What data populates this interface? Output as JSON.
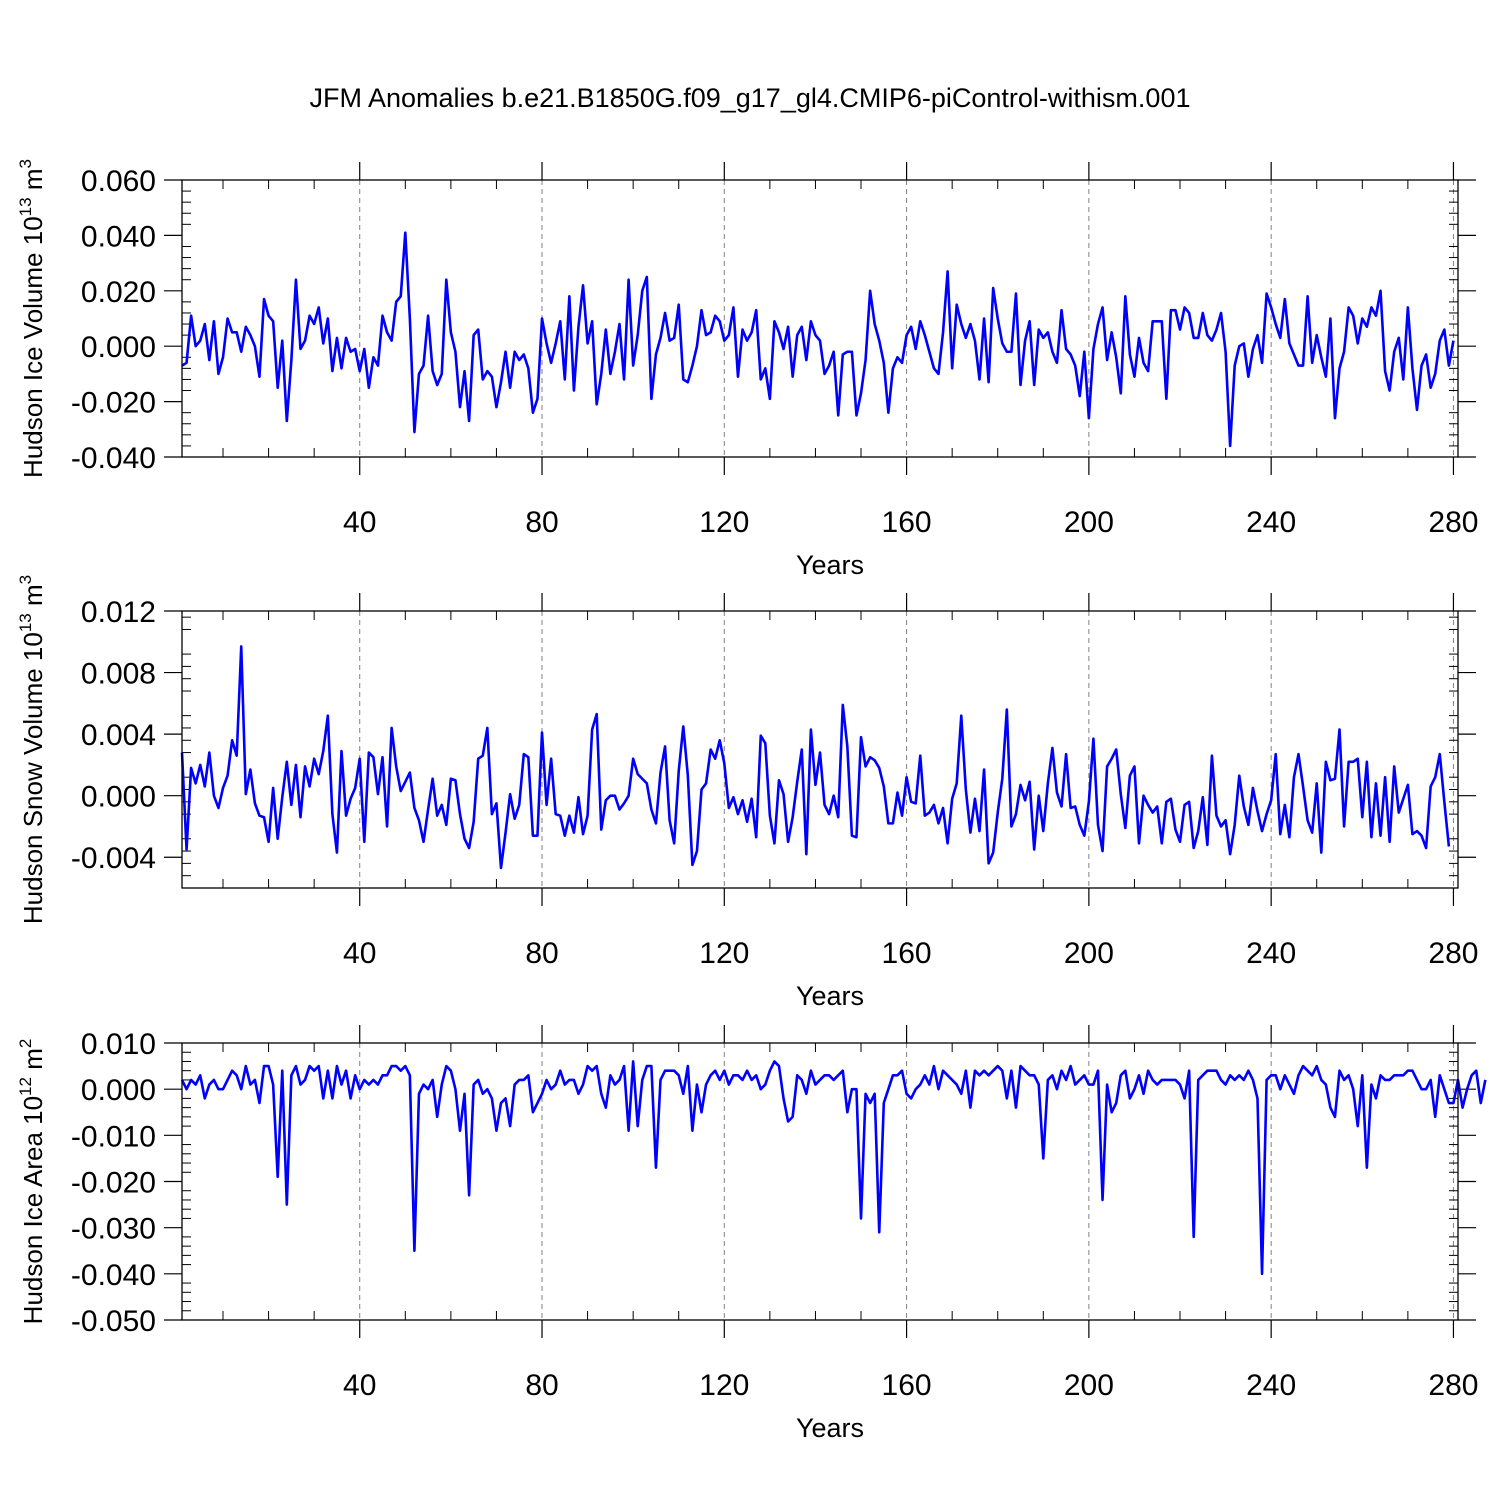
{
  "title": "JFM Anomalies b.e21.B1850G.f09_g17_gl4.CMIP6-piControl-withism.001",
  "colors": {
    "series": "#0000ff",
    "axes": "#000000",
    "grid": "#808080"
  },
  "chart_data": [
    {
      "type": "line",
      "panel": "ice-volume",
      "ylabel": {
        "main": "Hudson Ice Volume 10",
        "exp": "13",
        "unit": " m",
        "unit_exp": "3"
      },
      "xlabel": "Years",
      "xlim": [
        1,
        281
      ],
      "ylim": [
        -0.04,
        0.06
      ],
      "yticks": [
        -0.04,
        -0.02,
        0.0,
        0.02,
        0.04,
        0.06
      ],
      "ytick_labels": [
        "-0.040",
        "-0.020",
        "0.000",
        "0.020",
        "0.040",
        "0.060"
      ],
      "xticks": [
        40,
        80,
        120,
        160,
        200,
        240,
        280
      ],
      "xtick_labels": [
        "40",
        "80",
        "120",
        "160",
        "200",
        "240",
        "280"
      ],
      "grid": "vertical dashed at major x ticks",
      "x_start": 1,
      "values": [
        -0.007,
        -0.006,
        0.011,
        0.0,
        0.002,
        0.008,
        -0.005,
        0.009,
        -0.01,
        -0.004,
        0.01,
        0.005,
        0.005,
        -0.002,
        0.007,
        0.004,
        0.0,
        -0.011,
        0.017,
        0.011,
        0.009,
        -0.015,
        0.002,
        -0.027,
        -0.005,
        0.024,
        -0.001,
        0.002,
        0.011,
        0.008,
        0.014,
        0.001,
        0.01,
        -0.009,
        0.003,
        -0.008,
        0.003,
        -0.002,
        -0.001,
        -0.009,
        -0.001,
        -0.015,
        -0.004,
        -0.007,
        0.011,
        0.005,
        0.002,
        0.016,
        0.018,
        0.041,
        0.01,
        -0.031,
        -0.01,
        -0.007,
        0.011,
        -0.009,
        -0.014,
        -0.01,
        0.024,
        0.005,
        -0.002,
        -0.022,
        -0.009,
        -0.027,
        0.004,
        0.006,
        -0.012,
        -0.009,
        -0.011,
        -0.022,
        -0.013,
        -0.002,
        -0.015,
        -0.002,
        -0.005,
        -0.003,
        -0.008,
        -0.024,
        -0.019,
        0.01,
        0.001,
        -0.006,
        0.001,
        0.009,
        -0.012,
        0.018,
        -0.016,
        0.007,
        0.022,
        0.001,
        0.009,
        -0.021,
        -0.01,
        0.006,
        -0.01,
        -0.002,
        0.008,
        -0.012,
        0.024,
        -0.007,
        0.004,
        0.02,
        0.025,
        -0.019,
        -0.003,
        0.003,
        0.012,
        0.002,
        0.003,
        0.015,
        -0.012,
        -0.013,
        -0.007,
        0.0,
        0.013,
        0.004,
        0.005,
        0.011,
        0.009,
        0.002,
        0.004,
        0.014,
        -0.011,
        0.006,
        0.002,
        0.005,
        0.013,
        -0.012,
        -0.008,
        -0.019,
        0.009,
        0.005,
        -0.001,
        0.007,
        -0.011,
        0.004,
        0.007,
        -0.005,
        0.009,
        0.004,
        0.002,
        -0.01,
        -0.007,
        -0.002,
        -0.025,
        -0.003,
        -0.002,
        -0.002,
        -0.025,
        -0.017,
        -0.005,
        0.02,
        0.008,
        0.002,
        -0.006,
        -0.024,
        -0.008,
        -0.004,
        -0.006,
        0.004,
        0.007,
        -0.001,
        0.009,
        0.004,
        -0.002,
        -0.008,
        -0.01,
        0.005,
        0.027,
        -0.008,
        0.015,
        0.008,
        0.003,
        0.008,
        0.002,
        -0.012,
        0.01,
        -0.013,
        0.021,
        0.01,
        0.001,
        -0.002,
        -0.002,
        0.019,
        -0.014,
        0.002,
        0.009,
        -0.014,
        0.006,
        0.003,
        0.005,
        -0.002,
        -0.006,
        0.013,
        -0.001,
        -0.003,
        -0.007,
        -0.018,
        -0.002,
        -0.026,
        -0.001,
        0.008,
        0.014,
        -0.005,
        0.005,
        -0.004,
        -0.017,
        0.018,
        -0.003,
        -0.011,
        0.003,
        -0.006,
        -0.009,
        0.009,
        0.009,
        0.009,
        -0.019,
        0.013,
        0.013,
        0.006,
        0.014,
        0.012,
        0.003,
        0.003,
        0.012,
        0.004,
        0.002,
        0.006,
        0.012,
        -0.002,
        -0.036,
        -0.007,
        0.0,
        0.001,
        -0.011,
        -0.001,
        0.004,
        -0.006,
        0.019,
        0.014,
        0.008,
        0.003,
        0.017,
        0.001,
        -0.003,
        -0.007,
        -0.007,
        0.018,
        -0.006,
        0.004,
        -0.004,
        -0.011,
        0.01,
        -0.026,
        -0.008,
        -0.002,
        0.014,
        0.011,
        0.001,
        0.01,
        0.007,
        0.014,
        0.011,
        0.02,
        -0.009,
        -0.016,
        -0.002,
        0.003,
        -0.012,
        0.014,
        -0.008,
        -0.023,
        -0.007,
        -0.003,
        -0.015,
        -0.01,
        0.002,
        0.006,
        -0.007,
        0.002
      ]
    },
    {
      "type": "line",
      "panel": "snow-volume",
      "ylabel": {
        "main": "Hudson Snow Volume 10",
        "exp": "13",
        "unit": " m",
        "unit_exp": "3"
      },
      "xlabel": "Years",
      "xlim": [
        1,
        281
      ],
      "ylim": [
        -0.006,
        0.012
      ],
      "yticks": [
        -0.004,
        0.0,
        0.004,
        0.008,
        0.012
      ],
      "ytick_labels": [
        "-0.004",
        "0.000",
        "0.004",
        "0.008",
        "0.012"
      ],
      "xticks": [
        40,
        80,
        120,
        160,
        200,
        240,
        280
      ],
      "xtick_labels": [
        "40",
        "80",
        "120",
        "160",
        "200",
        "240",
        "280"
      ],
      "grid": "vertical dashed at major x ticks",
      "x_start": 1,
      "values": [
        0.0028,
        -0.0035,
        0.0018,
        0.0008,
        0.002,
        0.0006,
        0.0028,
        0.0,
        -0.0008,
        0.0005,
        0.0013,
        0.0036,
        0.0026,
        0.0097,
        0.0001,
        0.0017,
        -0.0005,
        -0.0013,
        -0.0014,
        -0.003,
        0.0005,
        -0.0028,
        -0.0001,
        0.0022,
        -0.0006,
        0.002,
        -0.0014,
        0.0019,
        0.0006,
        0.0024,
        0.0014,
        0.0029,
        0.0052,
        -0.0012,
        -0.0037,
        0.0029,
        -0.0013,
        -0.0002,
        0.0005,
        0.0024,
        -0.003,
        0.0028,
        0.0025,
        0.0001,
        0.0025,
        -0.002,
        0.0044,
        0.0019,
        0.0003,
        0.0009,
        0.0015,
        -0.0008,
        -0.0016,
        -0.003,
        -0.0009,
        0.0011,
        -0.0013,
        -0.0006,
        -0.0019,
        0.0011,
        0.001,
        -0.0012,
        -0.0028,
        -0.0034,
        -0.0017,
        0.0024,
        0.0026,
        0.0044,
        -0.0012,
        -0.0005,
        -0.0047,
        -0.0024,
        0.0001,
        -0.0015,
        -0.0006,
        0.0027,
        0.0025,
        -0.0026,
        -0.0026,
        0.0041,
        -0.0006,
        0.0024,
        -0.0012,
        -0.0013,
        -0.0026,
        -0.0013,
        -0.0024,
        -0.0001,
        -0.0025,
        -0.0013,
        0.0043,
        0.0053,
        -0.0022,
        -0.0003,
        0.0,
        0.0,
        -0.0009,
        -0.0005,
        0.0,
        0.0024,
        0.0014,
        0.0011,
        0.0008,
        -0.0009,
        -0.0018,
        0.0015,
        0.0032,
        -0.0016,
        -0.0031,
        0.0016,
        0.0045,
        0.0013,
        -0.0045,
        -0.0036,
        0.0004,
        0.0008,
        0.003,
        0.0024,
        0.0036,
        0.0021,
        -0.0008,
        -0.0001,
        -0.0012,
        -0.0003,
        -0.0017,
        -0.0002,
        -0.0027,
        0.0039,
        0.0034,
        -0.0013,
        -0.0031,
        0.001,
        0.0001,
        -0.003,
        -0.0014,
        0.0009,
        0.003,
        -0.0038,
        0.0043,
        0.0007,
        0.0028,
        -0.0006,
        -0.0012,
        0.0,
        -0.0014,
        0.0059,
        0.0032,
        -0.0026,
        -0.0027,
        0.0038,
        0.0019,
        0.0025,
        0.0023,
        0.0018,
        0.0006,
        -0.0018,
        -0.0018,
        0.0002,
        -0.0013,
        0.0012,
        -0.0004,
        -0.0005,
        0.0026,
        -0.0013,
        -0.0011,
        -0.0006,
        -0.0018,
        -0.0008,
        -0.0031,
        -0.0002,
        0.0008,
        0.0052,
        0.0004,
        -0.0024,
        -0.0002,
        -0.0023,
        0.0017,
        -0.0044,
        -0.0037,
        -0.0011,
        0.0011,
        0.0056,
        -0.002,
        -0.0012,
        0.0007,
        -0.0003,
        0.0009,
        -0.0035,
        0.0,
        -0.0023,
        0.0008,
        0.0031,
        0.0002,
        -0.0007,
        0.0027,
        -0.0008,
        -0.0007,
        -0.0019,
        -0.0026,
        -0.0004,
        0.0037,
        -0.0019,
        -0.0036,
        0.0019,
        0.0024,
        0.003,
        0.0001,
        -0.0021,
        0.0013,
        0.0019,
        -0.0031,
        0.0,
        -0.0006,
        -0.0011,
        -0.0007,
        -0.0031,
        -0.0004,
        -0.0002,
        -0.0022,
        -0.003,
        -0.0006,
        -0.0004,
        -0.0034,
        -0.0023,
        -0.0001,
        -0.0032,
        0.0026,
        -0.0013,
        -0.002,
        -0.0016,
        -0.0038,
        -0.0019,
        0.0013,
        -0.0007,
        -0.0019,
        0.0005,
        -0.001,
        -0.0023,
        -0.0012,
        -0.0003,
        0.0027,
        -0.0025,
        -0.0006,
        -0.0027,
        0.0012,
        0.0027,
        0.0006,
        -0.0016,
        -0.0024,
        0.0008,
        -0.0037,
        0.0022,
        0.001,
        0.0011,
        0.0043,
        -0.002,
        0.0022,
        0.0022,
        0.0024,
        -0.0014,
        0.0022,
        -0.0027,
        0.0008,
        -0.0026,
        0.0012,
        -0.003,
        0.0019,
        -0.0011,
        -0.0002,
        0.0007,
        -0.0025,
        -0.0023,
        -0.0026,
        -0.0034,
        0.0006,
        0.0012,
        0.0027,
        -0.0004,
        -0.0033
      ]
    },
    {
      "type": "line",
      "panel": "ice-area",
      "ylabel": {
        "main": "Hudson Ice Area 10",
        "exp": "12",
        "unit": " m",
        "unit_exp": "2"
      },
      "xlabel": "Years",
      "xlim": [
        1,
        281
      ],
      "ylim": [
        -0.05,
        0.01
      ],
      "yticks": [
        -0.05,
        -0.04,
        -0.03,
        -0.02,
        -0.01,
        0.0,
        0.01
      ],
      "ytick_labels": [
        "-0.050",
        "-0.040",
        "-0.030",
        "-0.020",
        "-0.010",
        "0.000",
        "0.010"
      ],
      "xticks": [
        40,
        80,
        120,
        160,
        200,
        240,
        280
      ],
      "xtick_labels": [
        "40",
        "80",
        "120",
        "160",
        "200",
        "240",
        "280"
      ],
      "grid": "vertical dashed at major x ticks",
      "x_start": 1,
      "values": [
        0.002,
        0.0,
        0.002,
        0.001,
        0.003,
        -0.002,
        0.001,
        0.002,
        0.0,
        0.0,
        0.002,
        0.004,
        0.003,
        0.0,
        0.005,
        0.001,
        0.002,
        -0.003,
        0.005,
        0.005,
        0.001,
        -0.019,
        0.004,
        -0.025,
        0.003,
        0.005,
        0.001,
        0.002,
        0.005,
        0.004,
        0.005,
        -0.002,
        0.004,
        -0.002,
        0.005,
        0.001,
        0.004,
        -0.002,
        0.003,
        0.0,
        0.002,
        0.001,
        0.002,
        0.001,
        0.003,
        0.003,
        0.005,
        0.005,
        0.004,
        0.005,
        0.003,
        -0.035,
        -0.001,
        0.001,
        0.0,
        0.002,
        -0.006,
        0.001,
        0.005,
        0.004,
        0.0,
        -0.009,
        -0.001,
        -0.023,
        0.001,
        0.002,
        -0.001,
        0.0,
        -0.002,
        -0.009,
        -0.003,
        -0.002,
        -0.008,
        0.001,
        0.002,
        0.002,
        0.003,
        -0.005,
        -0.003,
        -0.001,
        0.002,
        0.0,
        0.001,
        0.004,
        0.001,
        0.002,
        0.002,
        -0.001,
        0.001,
        0.005,
        0.004,
        0.005,
        -0.001,
        -0.004,
        0.003,
        0.001,
        0.002,
        0.005,
        -0.009,
        0.006,
        -0.008,
        0.002,
        0.005,
        0.005,
        -0.017,
        0.002,
        0.004,
        0.004,
        0.004,
        0.003,
        -0.001,
        0.005,
        -0.009,
        0.001,
        -0.005,
        0.001,
        0.003,
        0.004,
        0.002,
        0.004,
        0.001,
        0.003,
        0.003,
        0.002,
        0.004,
        0.002,
        0.003,
        0.0,
        0.001,
        0.004,
        0.006,
        0.005,
        -0.002,
        -0.007,
        -0.006,
        0.003,
        0.002,
        -0.001,
        0.004,
        0.001,
        0.002,
        0.003,
        0.003,
        0.002,
        0.003,
        0.004,
        -0.005,
        0.0,
        0.0,
        -0.028,
        -0.001,
        -0.003,
        -0.001,
        -0.031,
        -0.003,
        0.0,
        0.003,
        0.003,
        0.004,
        -0.001,
        -0.002,
        0.0,
        0.001,
        0.003,
        0.001,
        0.005,
        0.0,
        0.004,
        0.003,
        0.002,
        0.001,
        -0.001,
        0.004,
        -0.004,
        0.004,
        0.003,
        0.004,
        0.003,
        0.004,
        0.005,
        0.004,
        -0.002,
        0.004,
        -0.004,
        0.005,
        0.004,
        0.003,
        0.003,
        0.001,
        -0.015,
        0.002,
        0.003,
        0.0,
        0.004,
        0.002,
        0.005,
        0.001,
        0.002,
        0.003,
        0.001,
        0.001,
        0.004,
        -0.024,
        0.001,
        -0.005,
        -0.003,
        0.003,
        0.004,
        -0.002,
        0.0,
        0.003,
        -0.001,
        0.004,
        0.002,
        0.001,
        0.002,
        0.002,
        0.002,
        0.002,
        0.001,
        -0.002,
        0.004,
        -0.032,
        0.002,
        0.003,
        0.004,
        0.004,
        0.004,
        0.002,
        0.001,
        0.003,
        0.002,
        0.003,
        0.002,
        0.004,
        0.002,
        -0.002,
        -0.04,
        0.002,
        0.003,
        0.003,
        0.0,
        0.003,
        0.001,
        -0.001,
        0.003,
        0.005,
        0.004,
        0.003,
        0.005,
        0.002,
        0.001,
        -0.004,
        -0.006,
        0.004,
        0.002,
        0.003,
        0.0,
        -0.008,
        0.003,
        -0.017,
        0.001,
        -0.002,
        0.003,
        0.002,
        0.002,
        0.003,
        0.003,
        0.003,
        0.004,
        0.004,
        0.002,
        0.0,
        0.0,
        0.002,
        -0.006,
        0.003,
        0.0,
        -0.003,
        -0.003,
        0.002,
        -0.004,
        0.0,
        0.003,
        0.004,
        -0.003,
        0.002
      ]
    }
  ]
}
